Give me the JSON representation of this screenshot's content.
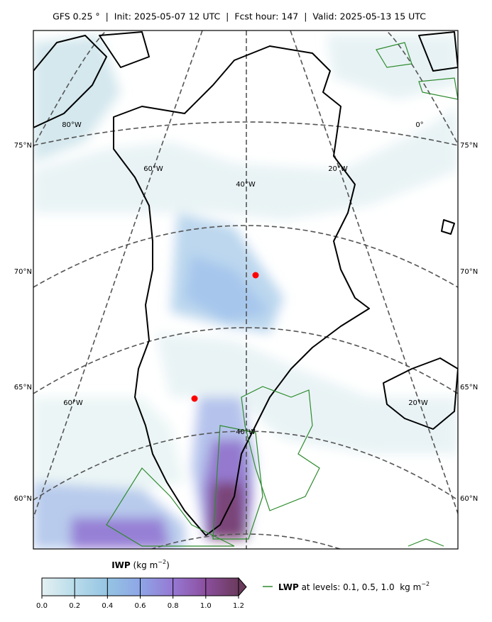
{
  "title": "GFS 0.25 °  |  Init: 2025-05-07 12 UTC  |  Fcst hour: 147  |  Valid: 2025-05-13 15 UTC",
  "lat_labels": [
    "75°N",
    "70°N",
    "65°N",
    "60°N"
  ],
  "lon_labels_north": [
    "80°W",
    "60°W",
    "40°W",
    "20°W",
    "0°"
  ],
  "lon_labels_south": [
    "60°W",
    "40°W",
    "20°W"
  ],
  "colorbar": {
    "label_bold": "IWP",
    "label_rest": "(kg m",
    "label_sup": "−2",
    "label_close": ")",
    "lim": [
      0,
      1.2
    ],
    "ticks": [
      {
        "value": 0,
        "label": "0.0"
      },
      0.2,
      0.4,
      0.6,
      0.8,
      {
        "value": 1,
        "label": "1.0"
      },
      1.2
    ],
    "colors": [
      "#e4f0f2",
      "#b8dcea",
      "#95c4e3",
      "#8ea6e6",
      "#9678d4",
      "#8c4f9e",
      "#6a3a5c"
    ],
    "extend": "max"
  },
  "legend": {
    "bold": "LWP",
    "rest": "at levels: 0.1, 0.5, 1.0  kg m",
    "sup": "−2",
    "color": "#2e8b2e"
  }
}
